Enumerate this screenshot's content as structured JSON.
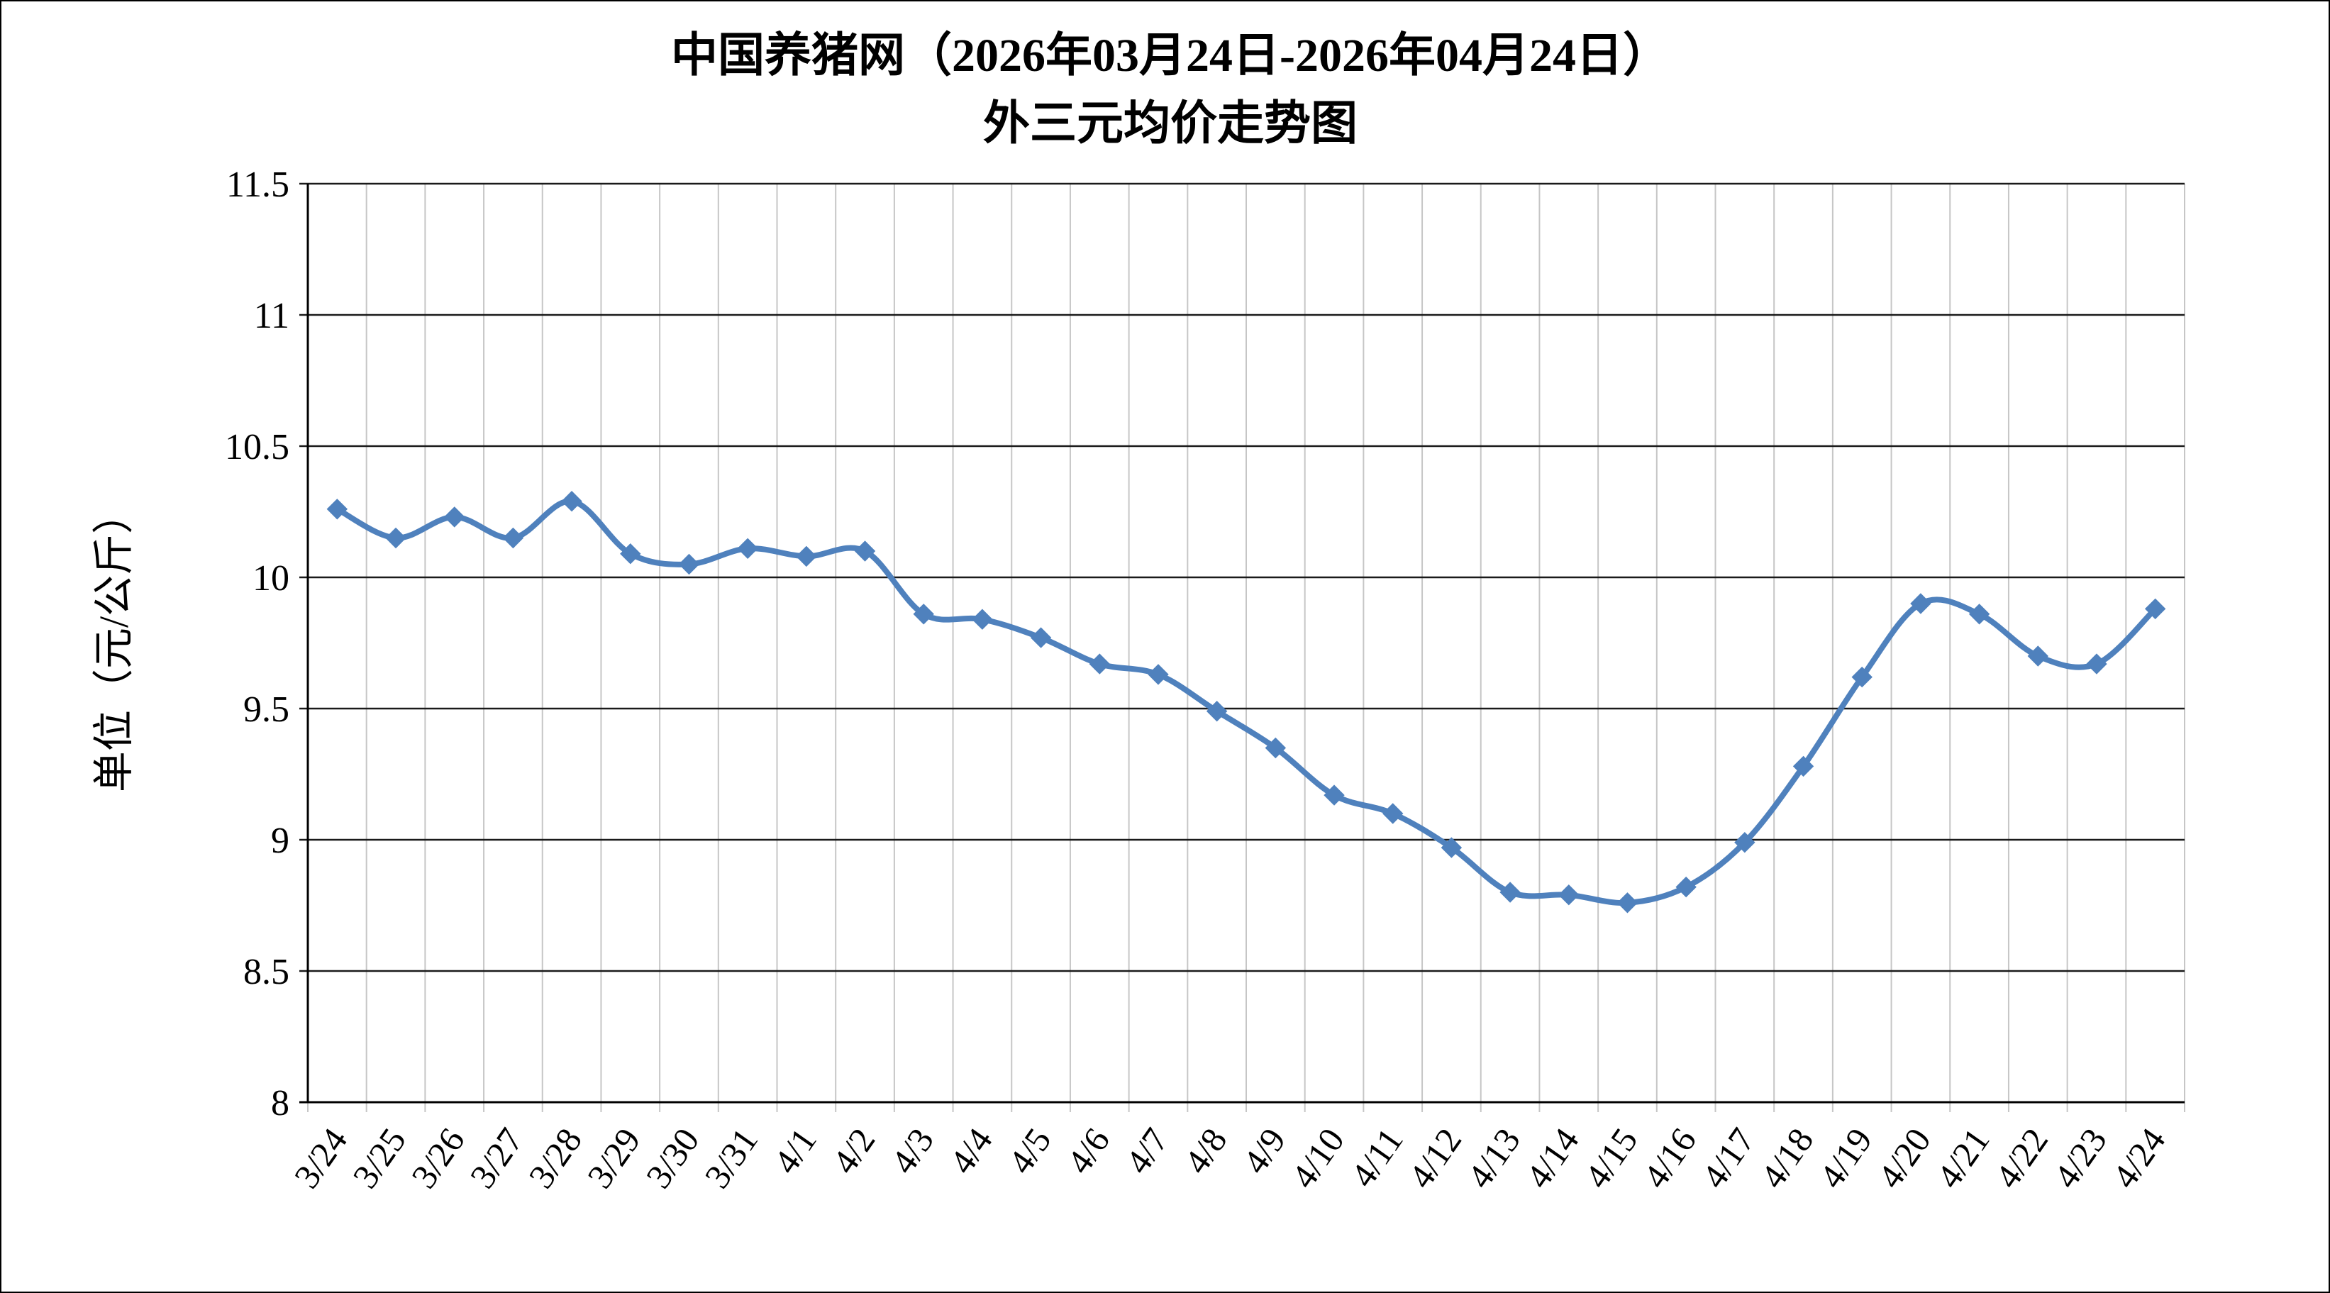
{
  "chart_data": {
    "type": "line",
    "title_line1": "中国养猪网（2026年03月24日-2026年04月24日）",
    "title_line2": "外三元均价走势图",
    "ylabel": "单位（元/公斤）",
    "ylim": [
      8,
      11.5
    ],
    "yticks": [
      8,
      8.5,
      9,
      9.5,
      10,
      10.5,
      11,
      11.5
    ],
    "grid": "on",
    "legend_position": "none",
    "line_color": "#4f81bd",
    "marker": "diamond",
    "v_grid_color": "#c6c6c6",
    "h_grid_color": "#1a1a1a",
    "categories": [
      "3/24",
      "3/25",
      "3/26",
      "3/27",
      "3/28",
      "3/29",
      "3/30",
      "3/31",
      "4/1",
      "4/2",
      "4/3",
      "4/4",
      "4/5",
      "4/6",
      "4/7",
      "4/8",
      "4/9",
      "4/10",
      "4/11",
      "4/12",
      "4/13",
      "4/14",
      "4/15",
      "4/16",
      "4/17",
      "4/18",
      "4/19",
      "4/20",
      "4/21",
      "4/22",
      "4/23",
      "4/24"
    ],
    "series": [
      {
        "name": "外三元均价",
        "values": [
          10.26,
          10.15,
          10.23,
          10.15,
          10.29,
          10.09,
          10.05,
          10.11,
          10.08,
          10.1,
          9.86,
          9.84,
          9.77,
          9.67,
          9.63,
          9.49,
          9.35,
          9.17,
          9.1,
          8.97,
          8.8,
          8.79,
          8.76,
          8.82,
          8.99,
          9.28,
          9.62,
          9.9,
          9.86,
          9.7,
          9.67,
          9.88
        ]
      }
    ]
  }
}
